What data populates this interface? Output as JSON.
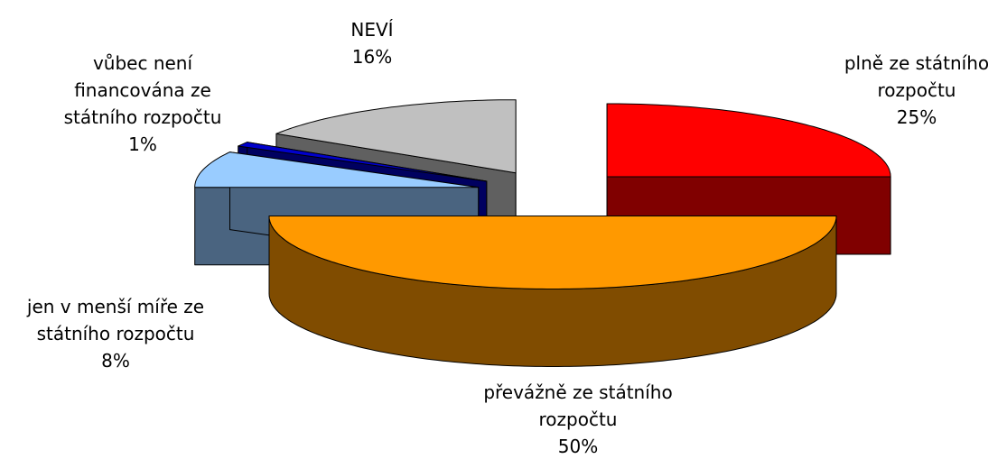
{
  "chart_data": {
    "type": "pie3d",
    "categories": [
      "plně ze státního rozpočtu",
      "převážně ze státního rozpočtu",
      "jen v menší míře ze státního rozpočtu",
      "vůbec není financována ze státního rozpočtu",
      "NEVÍ"
    ],
    "values": [
      25,
      50,
      8,
      1,
      16
    ],
    "value_labels": [
      "25%",
      "50%",
      "8%",
      "1%",
      "16%"
    ],
    "colors": [
      "#ff0000",
      "#ff9900",
      "#99ccff",
      "#0000cc",
      "#c0c0c0"
    ],
    "side_colors": [
      "#800000",
      "#804c00",
      "#4a6480",
      "#000060",
      "#606060"
    ]
  }
}
